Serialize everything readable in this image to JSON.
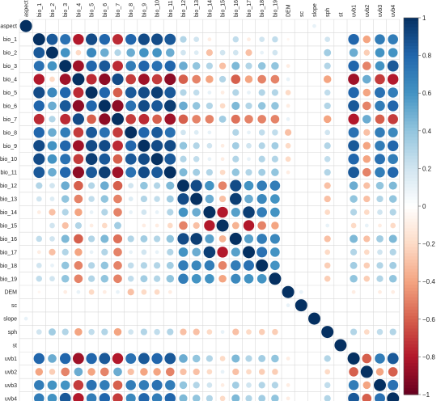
{
  "chart_data": {
    "type": "heatmap",
    "variables": [
      "aspect",
      "bio_1",
      "bio_2",
      "bio_3",
      "bio_4",
      "bio_5",
      "bio_6",
      "bio_7",
      "bio_8",
      "bio_9",
      "bio_10",
      "bio_11",
      "bio_12",
      "bio_13",
      "bio_14",
      "bio_15",
      "bio_16",
      "bio_17",
      "bio_18",
      "bio_19",
      "DEM",
      "sc",
      "slope",
      "sph",
      "st",
      "uvb1",
      "uvb2",
      "uvb3",
      "uvb4"
    ],
    "matrix": [
      [
        1,
        0,
        0,
        0,
        0,
        0,
        0,
        0,
        0,
        0,
        0,
        0,
        0,
        0,
        0,
        0,
        0,
        0,
        0,
        0,
        0,
        0,
        0.1,
        0,
        0,
        0,
        0,
        0,
        0
      ],
      [
        0,
        1,
        0.85,
        0.75,
        -0.8,
        0.9,
        0.8,
        -0.75,
        0.8,
        0.9,
        0.9,
        0.85,
        0.3,
        0.2,
        -0.1,
        0,
        0.25,
        -0.1,
        0.2,
        0.25,
        -0.05,
        0,
        0,
        0.2,
        0,
        0.8,
        -0.4,
        0.7,
        0.7
      ],
      [
        0,
        0.85,
        1,
        0.6,
        -0.2,
        0.65,
        0.5,
        0.3,
        0.5,
        0.6,
        0.6,
        0.5,
        0.2,
        0.15,
        -0.3,
        0.2,
        0.2,
        -0.3,
        0.1,
        0.2,
        0,
        0,
        0,
        0.35,
        0,
        0.5,
        -0.25,
        0.6,
        0.6
      ],
      [
        0,
        0.75,
        0.6,
        1,
        -0.85,
        0.8,
        0.85,
        -0.75,
        0.7,
        0.8,
        0.75,
        0.8,
        0.5,
        0.4,
        0.3,
        -0.3,
        0.45,
        0.3,
        0.4,
        0.4,
        -0.1,
        0,
        0,
        0.3,
        0,
        0.8,
        -0.5,
        0.6,
        0.85
      ],
      [
        0,
        -0.8,
        -0.2,
        -0.85,
        1,
        -0.75,
        -0.9,
        0.9,
        -0.7,
        -0.85,
        -0.7,
        -0.9,
        -0.6,
        -0.5,
        -0.4,
        0.3,
        -0.6,
        -0.4,
        -0.5,
        -0.5,
        0.1,
        0,
        0,
        -0.4,
        0,
        -0.85,
        0.5,
        -0.7,
        -0.8
      ],
      [
        0,
        0.9,
        0.65,
        0.8,
        -0.75,
        1,
        0.8,
        -0.6,
        0.85,
        0.9,
        0.95,
        0.85,
        0.3,
        0.25,
        0.1,
        -0.1,
        0.3,
        0.1,
        0.3,
        0.3,
        -0.2,
        0,
        0,
        0.25,
        0,
        0.8,
        -0.4,
        0.75,
        0.7
      ],
      [
        0,
        0.8,
        0.5,
        0.85,
        -0.9,
        0.8,
        1,
        -0.9,
        0.75,
        0.9,
        0.85,
        0.95,
        0.5,
        0.4,
        0.3,
        -0.2,
        0.45,
        0.3,
        0.4,
        0.4,
        -0.1,
        0,
        0,
        0.3,
        0,
        0.85,
        -0.5,
        0.7,
        0.8
      ],
      [
        0,
        -0.75,
        0.3,
        -0.75,
        0.9,
        -0.6,
        -0.9,
        1,
        -0.7,
        -0.75,
        -0.6,
        -0.85,
        -0.6,
        -0.5,
        -0.5,
        0.35,
        -0.55,
        -0.5,
        -0.5,
        -0.5,
        0.1,
        0,
        0,
        -0.4,
        0,
        -0.8,
        0.5,
        -0.6,
        -0.7
      ],
      [
        0,
        0.8,
        0.5,
        0.7,
        -0.7,
        0.85,
        0.75,
        -0.7,
        1,
        0.8,
        0.85,
        0.75,
        0.2,
        0.15,
        0.1,
        0,
        0.3,
        0.1,
        0.25,
        0.25,
        -0.3,
        0,
        0,
        0.2,
        0,
        0.75,
        -0.3,
        0.7,
        0.65
      ],
      [
        0,
        0.9,
        0.6,
        0.8,
        -0.85,
        0.9,
        0.9,
        -0.75,
        0.8,
        1,
        0.9,
        0.9,
        0.4,
        0.3,
        0.2,
        -0.1,
        0.35,
        0.2,
        0.3,
        0.35,
        -0.2,
        0,
        0,
        0.3,
        0,
        0.85,
        -0.4,
        0.7,
        0.8
      ],
      [
        0,
        0.9,
        0.6,
        0.75,
        -0.7,
        0.95,
        0.85,
        -0.6,
        0.85,
        0.9,
        1,
        0.85,
        0.3,
        0.25,
        0.1,
        -0.1,
        0.3,
        0.1,
        0.3,
        0.3,
        -0.2,
        0,
        0,
        0.25,
        0,
        0.8,
        -0.4,
        0.75,
        0.7
      ],
      [
        0,
        0.85,
        0.5,
        0.8,
        -0.9,
        0.85,
        0.95,
        -0.85,
        0.75,
        0.9,
        0.85,
        1,
        0.45,
        0.35,
        0.3,
        -0.2,
        0.4,
        0.3,
        0.35,
        0.4,
        -0.1,
        0,
        0,
        0.3,
        0,
        0.85,
        -0.5,
        0.7,
        0.8
      ],
      [
        0,
        0.3,
        0.2,
        0.5,
        -0.6,
        0.3,
        0.5,
        -0.6,
        0.2,
        0.4,
        0.3,
        0.45,
        1,
        0.9,
        0.6,
        -0.5,
        0.9,
        0.6,
        0.7,
        0.7,
        0,
        0,
        0,
        -0.3,
        0,
        0.5,
        -0.3,
        0.4,
        0.45
      ],
      [
        0,
        0.2,
        0.15,
        0.4,
        -0.5,
        0.25,
        0.4,
        -0.5,
        0.15,
        0.3,
        0.25,
        0.35,
        0.9,
        1,
        0.5,
        -0.3,
        0.95,
        0.5,
        0.65,
        0.6,
        0,
        0,
        0,
        -0.3,
        0,
        0.4,
        -0.3,
        0.3,
        0.4
      ],
      [
        0,
        -0.1,
        -0.3,
        0.3,
        -0.4,
        0.1,
        0.3,
        -0.5,
        0.1,
        0.2,
        0.1,
        0.3,
        0.6,
        0.5,
        1,
        -0.8,
        0.55,
        0.95,
        0.7,
        0.6,
        0,
        0,
        0,
        -0.2,
        0,
        0.3,
        -0.2,
        0.2,
        0.3
      ],
      [
        0,
        0,
        0.2,
        -0.3,
        0.3,
        -0.1,
        -0.2,
        0.35,
        0,
        -0.1,
        -0.1,
        -0.2,
        -0.5,
        -0.3,
        -0.8,
        1,
        -0.35,
        -0.8,
        -0.5,
        -0.4,
        0,
        0,
        0,
        0.1,
        0,
        -0.2,
        0.1,
        -0.1,
        -0.2
      ],
      [
        0,
        0.25,
        0.2,
        0.45,
        -0.6,
        0.3,
        0.45,
        -0.55,
        0.3,
        0.35,
        0.3,
        0.4,
        0.9,
        0.95,
        0.55,
        -0.35,
        1,
        0.55,
        0.7,
        0.65,
        0,
        0,
        0,
        -0.3,
        0,
        0.45,
        -0.3,
        0.35,
        0.45
      ],
      [
        0,
        -0.1,
        -0.3,
        0.3,
        -0.4,
        0.1,
        0.3,
        -0.5,
        0.1,
        0.2,
        0.1,
        0.3,
        0.6,
        0.5,
        0.95,
        -0.8,
        0.55,
        1,
        0.75,
        0.6,
        0,
        0,
        0,
        -0.2,
        0,
        0.3,
        -0.2,
        0.2,
        0.3
      ],
      [
        0,
        0.2,
        0.1,
        0.4,
        -0.5,
        0.3,
        0.4,
        -0.5,
        0.25,
        0.3,
        0.3,
        0.35,
        0.7,
        0.65,
        0.7,
        -0.5,
        0.7,
        0.75,
        1,
        0.6,
        0,
        0,
        0,
        -0.25,
        0,
        0.35,
        -0.25,
        0.3,
        0.35
      ],
      [
        0,
        0.25,
        0.2,
        0.4,
        -0.5,
        0.3,
        0.4,
        -0.5,
        0.25,
        0.35,
        0.3,
        0.4,
        0.7,
        0.6,
        0.6,
        -0.4,
        0.65,
        0.6,
        0.6,
        1,
        0,
        0,
        0,
        -0.25,
        0,
        0.4,
        -0.25,
        0.3,
        0.4
      ],
      [
        0,
        -0.05,
        0,
        -0.1,
        0.1,
        -0.2,
        -0.1,
        0.1,
        -0.3,
        -0.2,
        -0.2,
        -0.1,
        0,
        0,
        0,
        0,
        0,
        0,
        0,
        0,
        1,
        0.1,
        0,
        0,
        0,
        -0.1,
        0,
        -0.1,
        -0.1
      ],
      [
        0,
        0,
        0,
        0,
        0,
        0,
        0,
        0,
        0,
        0,
        0,
        0,
        0,
        0,
        0,
        0,
        0,
        0,
        0,
        0,
        0.1,
        1,
        0,
        0,
        0,
        0,
        0,
        0,
        0
      ],
      [
        0.1,
        0,
        0,
        0,
        0,
        0,
        0,
        0,
        0,
        0,
        0,
        0,
        0,
        0,
        0,
        0,
        0,
        0,
        0,
        0,
        0,
        0,
        1,
        0,
        0,
        0,
        0,
        0,
        0
      ],
      [
        0,
        0.2,
        0.35,
        0.3,
        -0.4,
        0.25,
        0.3,
        -0.4,
        0.2,
        0.3,
        0.25,
        0.3,
        -0.3,
        -0.3,
        -0.2,
        0.1,
        -0.3,
        -0.2,
        -0.25,
        -0.25,
        0,
        0,
        0,
        1,
        0,
        0.3,
        -0.2,
        0.25,
        0.3
      ],
      [
        0,
        0,
        0,
        0,
        0,
        0,
        0,
        0,
        0,
        0,
        0,
        0,
        0,
        0,
        0,
        0,
        0,
        0,
        0,
        0,
        0,
        0,
        0,
        0,
        1,
        0,
        0,
        0,
        0
      ],
      [
        0,
        0.8,
        0.5,
        0.8,
        -0.85,
        0.8,
        0.85,
        -0.8,
        0.75,
        0.85,
        0.8,
        0.85,
        0.5,
        0.4,
        0.3,
        -0.2,
        0.45,
        0.3,
        0.35,
        0.4,
        -0.1,
        0,
        0,
        0.3,
        0,
        1,
        -0.6,
        0.7,
        0.85
      ],
      [
        0,
        -0.4,
        -0.25,
        -0.5,
        0.5,
        -0.4,
        -0.5,
        0.5,
        -0.3,
        -0.4,
        -0.4,
        -0.5,
        -0.3,
        -0.3,
        -0.2,
        0.1,
        -0.3,
        -0.2,
        -0.25,
        -0.25,
        0,
        0,
        0,
        -0.2,
        0,
        -0.6,
        1,
        -0.4,
        -0.6
      ],
      [
        0,
        0.7,
        0.6,
        0.6,
        -0.7,
        0.75,
        0.7,
        -0.6,
        0.7,
        0.7,
        0.75,
        0.7,
        0.4,
        0.3,
        0.2,
        -0.1,
        0.35,
        0.2,
        0.3,
        0.3,
        -0.1,
        0,
        0,
        0.25,
        0,
        0.7,
        -0.4,
        1,
        0.75
      ],
      [
        0,
        0.7,
        0.6,
        0.85,
        -0.8,
        0.7,
        0.8,
        -0.7,
        0.65,
        0.8,
        0.7,
        0.8,
        0.45,
        0.4,
        0.3,
        -0.2,
        0.45,
        0.3,
        0.35,
        0.4,
        -0.1,
        0,
        0,
        0.3,
        0,
        0.85,
        -0.6,
        0.75,
        1
      ]
    ],
    "color_scale": {
      "min": -1,
      "max": 1,
      "ticks": [
        1,
        0.8,
        0.6,
        0.4,
        0.2,
        0,
        -0.2,
        -0.4,
        -0.6,
        -0.8,
        -1
      ],
      "colors": [
        "#67001f",
        "#b2182b",
        "#d6604d",
        "#f4a582",
        "#fddbc7",
        "#ffffff",
        "#d1e5f0",
        "#92c5de",
        "#4393c3",
        "#2166ac",
        "#053061"
      ]
    }
  }
}
